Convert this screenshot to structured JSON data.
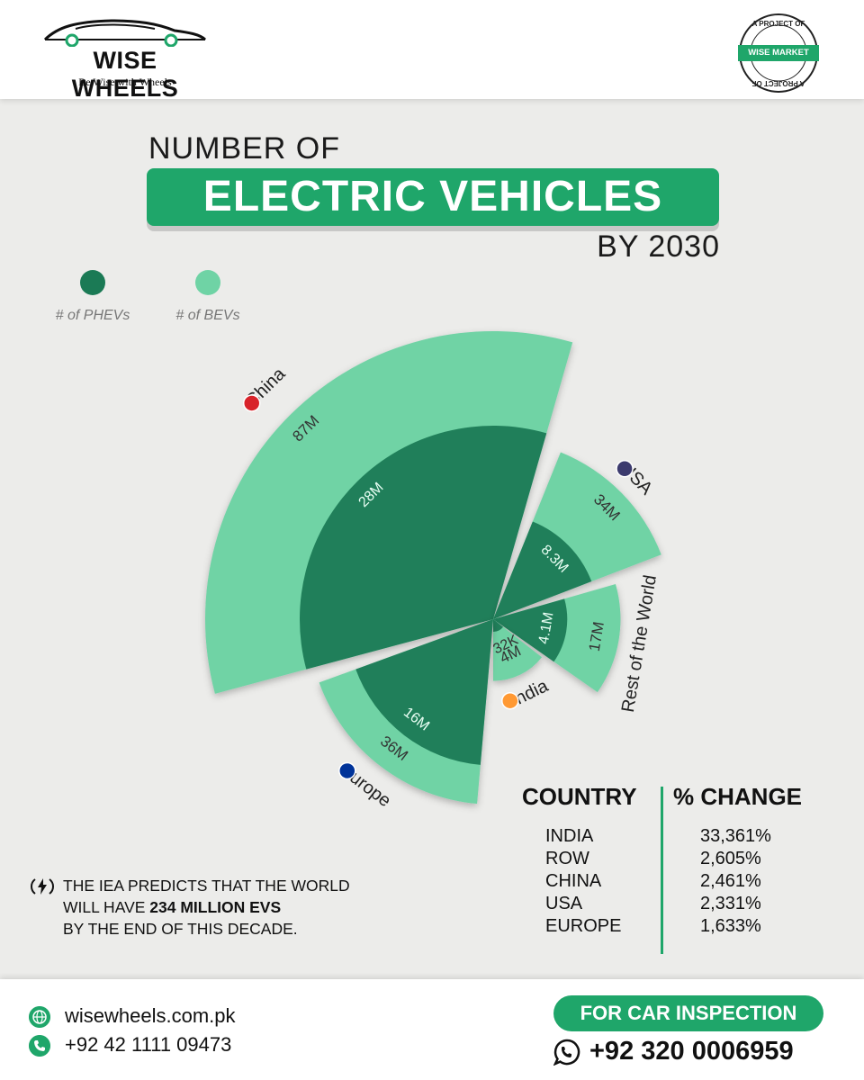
{
  "brand": {
    "name": "WISE WHEELS",
    "tagline": "Be Wise with Wheels",
    "seal_text": "WISE MARKET",
    "seal_ring_text": "A PROJECT OF"
  },
  "title": {
    "line1": "NUMBER OF",
    "line2": "ELECTRIC VEHICLES",
    "line3": "BY 2030"
  },
  "colors": {
    "accent": "#1fa66a",
    "phev": "#1b7a55",
    "bev": "#6fd3a5"
  },
  "legend": {
    "phev_label": "# of PHEVs",
    "bev_label": "# of BEVs"
  },
  "chart_data": {
    "type": "polar-area",
    "title": "Number of Electric Vehicles by 2030",
    "series": [
      {
        "name": "# of PHEVs",
        "color": "#1b7a55"
      },
      {
        "name": "# of BEVs",
        "color": "#6fd3a5"
      }
    ],
    "categories": [
      "China",
      "USA",
      "Rest of the World",
      "India",
      "Europe"
    ],
    "segments": [
      {
        "region": "China",
        "phev_label": "28M",
        "bev_label": "87M",
        "phev": 28,
        "bev": 87
      },
      {
        "region": "USA",
        "phev_label": "8.3M",
        "bev_label": "34M",
        "phev": 8.3,
        "bev": 34
      },
      {
        "region": "Rest of the World",
        "phev_label": "4.1M",
        "bev_label": "17M",
        "phev": 4.1,
        "bev": 17
      },
      {
        "region": "India",
        "phev_label": "32K",
        "bev_label": "4M",
        "phev": 0.032,
        "bev": 4
      },
      {
        "region": "Europe",
        "phev_label": "16M",
        "bev_label": "36M",
        "phev": 16,
        "bev": 36
      }
    ]
  },
  "table": {
    "header_country": "COUNTRY",
    "header_change": "% CHANGE",
    "rows": [
      {
        "country": "INDIA",
        "change": "33,361%"
      },
      {
        "country": "ROW",
        "change": "2,605%"
      },
      {
        "country": "CHINA",
        "change": "2,461%"
      },
      {
        "country": "USA",
        "change": "2,331%"
      },
      {
        "country": "EUROPE",
        "change": "1,633%"
      }
    ]
  },
  "footnote": {
    "line1": "THE IEA PREDICTS THAT THE WORLD",
    "line2_prefix": "WILL HAVE ",
    "line2_bold": "234 MILLION EVS",
    "line3": "BY THE END OF THIS DECADE."
  },
  "footer": {
    "website": "wisewheels.com.pk",
    "phone": "+92 42 1111 09473",
    "cta": "FOR CAR INSPECTION",
    "whatsapp": "+92 320 0006959"
  }
}
